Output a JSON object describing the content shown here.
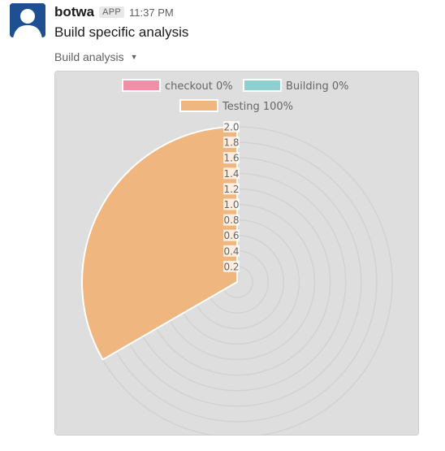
{
  "message": {
    "sender": "botwa",
    "badge": "APP",
    "time": "11:37 PM",
    "text": "Build specific analysis"
  },
  "attachment": {
    "title": "Build analysis",
    "caret_icon": "caret-down-icon"
  },
  "avatar_icon": "user-avatar-icon",
  "chart_data": {
    "type": "polarArea",
    "labels": [
      "checkout 0%",
      "Building 0%",
      "Testing 100%"
    ],
    "values": [
      0,
      0,
      100
    ],
    "colors": [
      "#f08fa6",
      "#8ecfcf",
      "#f0b67f"
    ],
    "r_ticks": [
      "0.2",
      "0.4",
      "0.6",
      "0.8",
      "1.0",
      "1.2",
      "1.4",
      "1.6",
      "1.8",
      "2.0"
    ],
    "r_max": 2.0,
    "legend_position": "top",
    "grid": true
  }
}
